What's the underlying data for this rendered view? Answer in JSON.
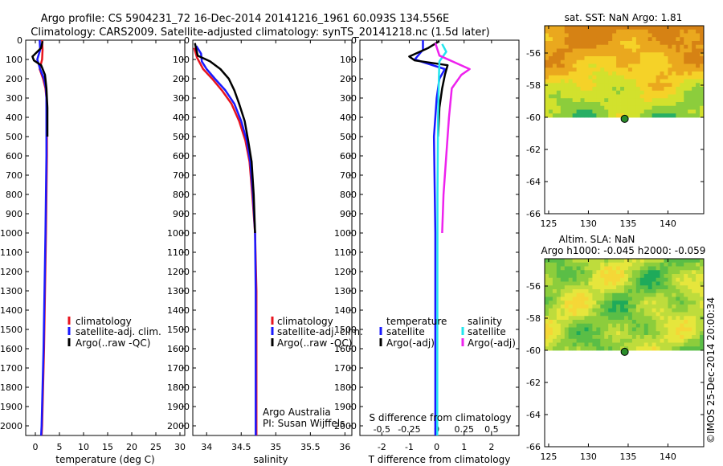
{
  "header": {
    "line1": "Argo profile: CS 5904231_72 16-Dec-2014 20141216_1961 60.093S 134.556E",
    "line2": "Climatology: CARS2009. Satellite-adjusted climatology: synTS_20141218.nc (1.5d later)"
  },
  "credits": {
    "org": "Argo Australia",
    "pi": "PI: Susan Wijffels",
    "stamp": "©IMOS 25-Dec-2014 20:00:34"
  },
  "colors": {
    "climatology": "#e8141e",
    "satellite": "#1a1aff",
    "argo": "#000000",
    "sal_sat": "#22e6ee",
    "sal_argo": "#ee22ee"
  },
  "chart_data": [
    {
      "id": "temperature",
      "type": "line",
      "xlabel": "temperature (deg C)",
      "ylabel": "",
      "xlim": [
        -2,
        31
      ],
      "ylim": [
        2050,
        0
      ],
      "xticks": [
        0,
        5,
        10,
        15,
        20,
        25,
        30
      ],
      "yticks": [
        0,
        100,
        200,
        300,
        400,
        500,
        600,
        700,
        800,
        900,
        1000,
        1100,
        1200,
        1300,
        1400,
        1500,
        1600,
        1700,
        1800,
        1900,
        2000
      ],
      "legend": [
        "climatology",
        "satellite-adj. clim.",
        "Argo(..raw -QC)"
      ],
      "series": [
        {
          "name": "climatology",
          "color": "climatology",
          "points": [
            [
              1.4,
              0
            ],
            [
              1.5,
              50
            ],
            [
              1.4,
              100
            ],
            [
              0.9,
              150
            ],
            [
              1.6,
              200
            ],
            [
              2.1,
              250
            ],
            [
              2.3,
              300
            ],
            [
              2.4,
              400
            ],
            [
              2.4,
              600
            ],
            [
              2.3,
              800
            ],
            [
              2.2,
              1000
            ],
            [
              2.0,
              1300
            ],
            [
              1.8,
              1600
            ],
            [
              1.6,
              1800
            ],
            [
              1.4,
              2000
            ],
            [
              1.3,
              2050
            ]
          ]
        },
        {
          "name": "satellite-adj. clim.",
          "color": "satellite",
          "points": [
            [
              0.9,
              0
            ],
            [
              1.0,
              50
            ],
            [
              0.4,
              100
            ],
            [
              1.0,
              150
            ],
            [
              1.8,
              200
            ],
            [
              2.2,
              250
            ],
            [
              2.3,
              300
            ],
            [
              2.3,
              400
            ],
            [
              2.3,
              600
            ],
            [
              2.2,
              800
            ],
            [
              2.1,
              1000
            ],
            [
              1.9,
              1300
            ],
            [
              1.7,
              1600
            ],
            [
              1.5,
              1800
            ],
            [
              1.3,
              2000
            ],
            [
              1.2,
              2050
            ]
          ]
        },
        {
          "name": "Argo(..raw -QC)",
          "color": "argo",
          "points": [
            [
              1.5,
              5
            ],
            [
              1.2,
              40
            ],
            [
              -0.6,
              85
            ],
            [
              -0.3,
              105
            ],
            [
              1.2,
              130
            ],
            [
              2.0,
              180
            ],
            [
              2.3,
              250
            ],
            [
              2.5,
              350
            ],
            [
              2.5,
              500
            ]
          ]
        }
      ]
    },
    {
      "id": "salinity",
      "type": "line",
      "xlabel": "salinity",
      "ylabel": "",
      "xlim": [
        33.8,
        36.1
      ],
      "ylim": [
        2050,
        0
      ],
      "xticks": [
        34,
        34.5,
        35,
        35.5,
        36
      ],
      "yticks": [
        0,
        100,
        200,
        300,
        400,
        500,
        600,
        700,
        800,
        900,
        1000,
        1100,
        1200,
        1300,
        1400,
        1500,
        1600,
        1700,
        1800,
        1900,
        2000
      ],
      "legend": [
        "climatology",
        "satellite-adj. clim.",
        "Argo(..raw -QC)"
      ],
      "series": [
        {
          "name": "climatology",
          "color": "climatology",
          "points": [
            [
              33.82,
              40
            ],
            [
              33.86,
              90
            ],
            [
              33.95,
              150
            ],
            [
              34.08,
              200
            ],
            [
              34.22,
              260
            ],
            [
              34.36,
              330
            ],
            [
              34.47,
              420
            ],
            [
              34.56,
              520
            ],
            [
              34.62,
              630
            ],
            [
              34.66,
              800
            ],
            [
              34.7,
              1000
            ],
            [
              34.72,
              1300
            ],
            [
              34.72,
              1700
            ],
            [
              34.72,
              2050
            ]
          ]
        },
        {
          "name": "satellite-adj. clim.",
          "color": "satellite",
          "points": [
            [
              33.85,
              30
            ],
            [
              33.92,
              70
            ],
            [
              33.93,
              110
            ],
            [
              34.0,
              150
            ],
            [
              34.12,
              200
            ],
            [
              34.27,
              260
            ],
            [
              34.4,
              330
            ],
            [
              34.5,
              420
            ],
            [
              34.58,
              520
            ],
            [
              34.63,
              630
            ],
            [
              34.67,
              800
            ],
            [
              34.7,
              1000
            ],
            [
              34.71,
              1300
            ],
            [
              34.71,
              1700
            ],
            [
              34.71,
              2050
            ]
          ]
        },
        {
          "name": "Argo(..raw -QC)",
          "color": "argo",
          "points": [
            [
              33.83,
              15
            ],
            [
              33.87,
              80
            ],
            [
              34.05,
              110
            ],
            [
              34.2,
              150
            ],
            [
              34.32,
              200
            ],
            [
              34.4,
              260
            ],
            [
              34.47,
              330
            ],
            [
              34.55,
              420
            ],
            [
              34.6,
              520
            ],
            [
              34.65,
              630
            ],
            [
              34.68,
              800
            ],
            [
              34.7,
              1000
            ]
          ]
        }
      ]
    },
    {
      "id": "difference",
      "type": "line",
      "xlabel": "T difference from climatology",
      "ylabel": "",
      "title_top": "S difference from climatology",
      "xlim": [
        -2.8,
        3.0
      ],
      "ylim": [
        2050,
        0
      ],
      "xticks": [
        -2,
        -1,
        0,
        1,
        2
      ],
      "xticks_top": [
        -0.5,
        -0.25,
        0,
        0.25,
        0.5
      ],
      "yticks": [
        0,
        100,
        200,
        300,
        400,
        500,
        600,
        700,
        800,
        900,
        1000,
        1100,
        1200,
        1300,
        1400,
        1500,
        1600,
        1700,
        1800,
        1900,
        2000
      ],
      "legend_temperature": {
        "heading": "temperature",
        "items": [
          "satellite",
          "Argo(-adj)"
        ]
      },
      "legend_salinity": {
        "heading": "salinity",
        "items": [
          "satellite",
          "Argo(-adj)"
        ]
      },
      "series": [
        {
          "name": "temperature satellite",
          "color": "satellite",
          "points": [
            [
              -0.5,
              0
            ],
            [
              -0.5,
              50
            ],
            [
              -0.8,
              100
            ],
            [
              0.3,
              150
            ],
            [
              0.1,
              200
            ],
            [
              0.0,
              300
            ],
            [
              -0.1,
              500
            ],
            [
              -0.05,
              1000
            ],
            [
              -0.05,
              2050
            ]
          ]
        },
        {
          "name": "temperature Argo(-adj)",
          "color": "argo",
          "points": [
            [
              0.1,
              5
            ],
            [
              -0.3,
              40
            ],
            [
              -1.0,
              85
            ],
            [
              -0.8,
              105
            ],
            [
              0.4,
              130
            ],
            [
              0.3,
              180
            ],
            [
              0.2,
              250
            ],
            [
              0.1,
              350
            ],
            [
              0.05,
              500
            ]
          ]
        },
        {
          "name": "salinity satellite",
          "color": "sal_sat",
          "points": [
            [
              0.2,
              20
            ],
            [
              0.35,
              60
            ],
            [
              0.1,
              110
            ],
            [
              0.08,
              200
            ],
            [
              0.05,
              400
            ],
            [
              0.03,
              800
            ],
            [
              0.02,
              2050
            ]
          ]
        },
        {
          "name": "salinity Argo(-adj)",
          "color": "sal_argo",
          "points": [
            [
              -0.05,
              15
            ],
            [
              0.1,
              80
            ],
            [
              1.2,
              150
            ],
            [
              0.9,
              180
            ],
            [
              0.55,
              250
            ],
            [
              0.45,
              400
            ],
            [
              0.35,
              600
            ],
            [
              0.25,
              800
            ],
            [
              0.2,
              1000
            ]
          ]
        }
      ]
    },
    {
      "id": "sst_map",
      "type": "heatmap",
      "title": "sat. SST: NaN Argo: 1.81",
      "xlim": [
        124.5,
        144.5
      ],
      "ylim": [
        -66,
        -54.3
      ],
      "xticks": [
        125,
        130,
        135,
        140
      ],
      "yticks": [
        -56,
        -58,
        -60,
        -62,
        -64,
        -66
      ],
      "data_lat_min": -60,
      "profile_point": [
        134.556,
        -60.093
      ]
    },
    {
      "id": "sla_map",
      "type": "heatmap",
      "title": "Altim. SLA: NaN",
      "subtitle": "Argo h1000: -0.045 h2000: -0.059",
      "xlim": [
        124.5,
        144.5
      ],
      "ylim": [
        -66,
        -54.3
      ],
      "xticks": [
        125,
        130,
        135,
        140
      ],
      "yticks": [
        -56,
        -58,
        -60,
        -62,
        -64,
        -66
      ],
      "data_lat_min": -60,
      "profile_point": [
        134.556,
        -60.093
      ]
    }
  ]
}
